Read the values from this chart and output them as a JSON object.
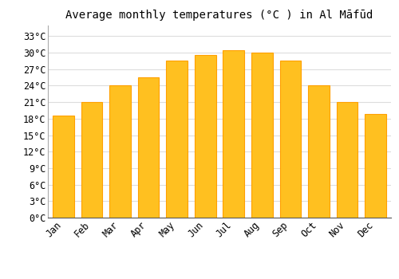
{
  "title": "Average monthly temperatures (°C ) in Al Māfūd",
  "months": [
    "Jan",
    "Feb",
    "Mar",
    "Apr",
    "May",
    "Jun",
    "Jul",
    "Aug",
    "Sep",
    "Oct",
    "Nov",
    "Dec"
  ],
  "values": [
    18.5,
    21.0,
    24.0,
    25.5,
    28.5,
    29.5,
    30.5,
    30.0,
    28.5,
    24.0,
    21.0,
    18.8
  ],
  "bar_color": "#FFC020",
  "bar_edge_color": "#FFA000",
  "yticks": [
    0,
    3,
    6,
    9,
    12,
    15,
    18,
    21,
    24,
    27,
    30,
    33
  ],
  "ytick_labels": [
    "0°C",
    "3°C",
    "6°C",
    "9°C",
    "12°C",
    "15°C",
    "18°C",
    "21°C",
    "24°C",
    "27°C",
    "30°C",
    "33°C"
  ],
  "ylim": [
    0,
    35
  ],
  "background_color": "#ffffff",
  "grid_color": "#dddddd",
  "title_fontsize": 10,
  "tick_fontsize": 8.5
}
